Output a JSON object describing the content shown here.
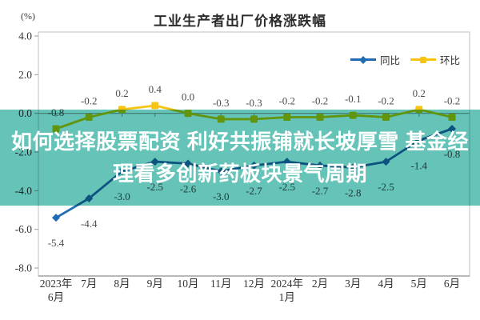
{
  "chart_data": {
    "type": "line",
    "title": "工业生产者出厂价格涨跌幅",
    "unit_label": "(%)",
    "categories": [
      "2023年6月",
      "7月",
      "8月",
      "9月",
      "10月",
      "11月",
      "12月",
      "2024年1月",
      "2月",
      "3月",
      "4月",
      "5月",
      "6月"
    ],
    "x_tick_line1": [
      "2023年",
      "7月",
      "8月",
      "9月",
      "10月",
      "11月",
      "12月",
      "2024年",
      "2月",
      "3月",
      "4月",
      "5月",
      "6月"
    ],
    "x_tick_line2": [
      "6月",
      "",
      "",
      "",
      "",
      "",
      "",
      "1月",
      "",
      "",
      "",
      "",
      ""
    ],
    "series": [
      {
        "name": "同比",
        "color": "#1E6CB2",
        "marker": "diamond",
        "values": [
          -5.4,
          -4.4,
          -3.0,
          -2.5,
          -2.6,
          -3.0,
          -2.7,
          -2.5,
          -2.7,
          -2.8,
          -2.5,
          -1.4,
          -0.8
        ]
      },
      {
        "name": "环比",
        "color": "#F8C313",
        "marker": "square",
        "values": [
          -0.8,
          -0.2,
          0.2,
          0.4,
          0.0,
          -0.3,
          -0.3,
          -0.2,
          -0.2,
          -0.1,
          -0.2,
          0.2,
          -0.2
        ]
      }
    ],
    "yticks": [
      "4.0",
      "2.0",
      "0.0",
      "-2.0",
      "-4.0",
      "-6.0",
      "-8.0"
    ],
    "ylim": [
      -8,
      4
    ],
    "grid": false,
    "legend_position": "top-right",
    "axis_color": "#9b9b9b",
    "label_color": "#4d4d4d",
    "border_color": "#c2c2c2"
  },
  "overlay": {
    "line1": "如何选择股票配资 利好共振铺就长坡厚雪 基金经",
    "line2": "理看多创新药板块景气周期",
    "band_color": "#65C3B8",
    "text_color": "#FFFFFF"
  }
}
